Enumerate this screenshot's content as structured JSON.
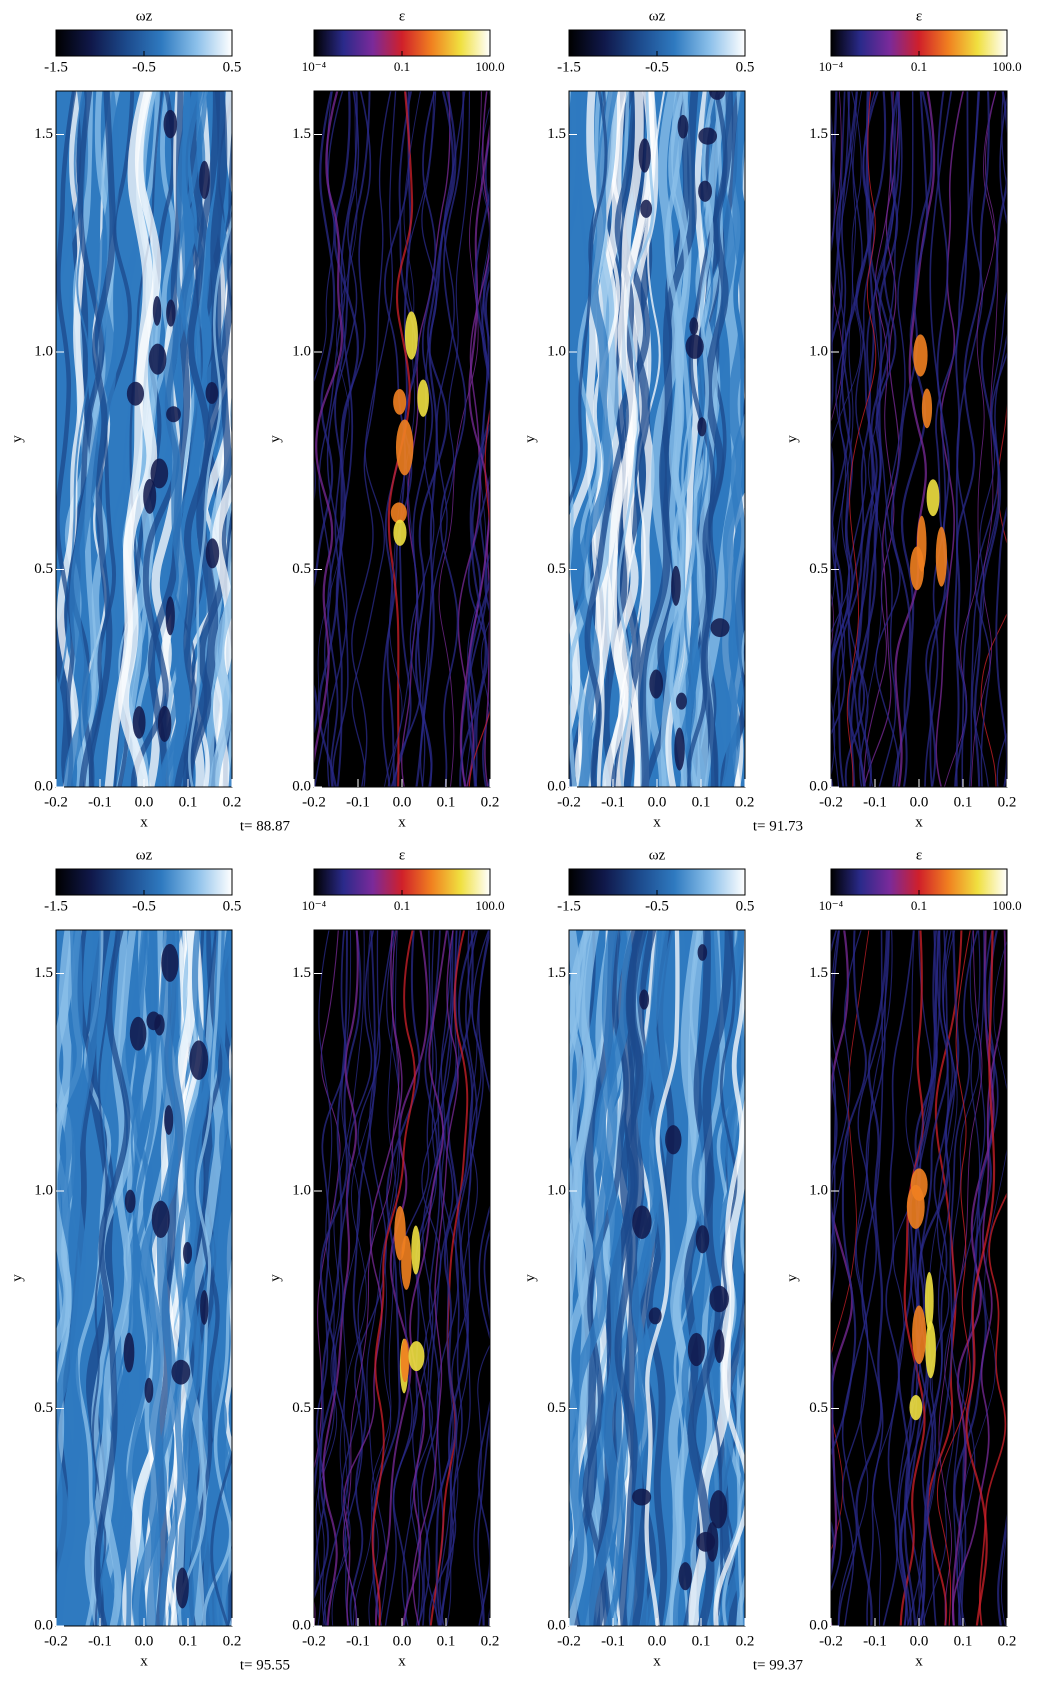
{
  "chart_data": [
    {
      "type": "heatmap",
      "title": "ωz",
      "xlabel": "x",
      "ylabel": "y",
      "xlim": [
        -0.2,
        0.2
      ],
      "ylim": [
        0,
        1.6
      ],
      "xticks": [
        -0.2,
        -0.1,
        {
          "value": 0,
          "label": "0.0"
        },
        0.1,
        0.2
      ],
      "yticks": [
        {
          "value": 0,
          "label": "0.0"
        },
        0.5,
        {
          "value": 1,
          "label": "1.0"
        },
        1.5
      ],
      "colorbar_lim": [
        -1.5,
        0.5
      ],
      "colorbar_ticks": [
        -1.5,
        -0.5,
        0.5
      ],
      "colorbar_log": false,
      "colormap": [
        "#000000",
        "#10184a",
        "#1c4a8c",
        "#2f7ac0",
        "#8cc0ea",
        "#ffffff"
      ],
      "annotation": "t= 88.87"
    },
    {
      "type": "heatmap",
      "title": "ε",
      "xlabel": "x",
      "ylabel": "y",
      "xlim": [
        -0.2,
        0.2
      ],
      "ylim": [
        0,
        1.6
      ],
      "xticks": [
        -0.2,
        -0.1,
        {
          "value": 0,
          "label": "0.0"
        },
        0.1,
        0.2
      ],
      "yticks": [
        {
          "value": 0,
          "label": "0.0"
        },
        0.5,
        {
          "value": 1,
          "label": "1.0"
        },
        1.5
      ],
      "colorbar_lim": [
        0.0001,
        100
      ],
      "colorbar_ticks": [
        {
          "value": 0.0001,
          "label": "10⁻⁴"
        },
        0.1,
        {
          "value": 100,
          "label": "100.0"
        }
      ],
      "colorbar_log": true,
      "colormap": [
        "#000000",
        "#2a2a8a",
        "#7a2a9a",
        "#d0202a",
        "#f08020",
        "#f0e040",
        "#ffffff"
      ]
    },
    {
      "type": "heatmap",
      "title": "ωz",
      "xlabel": "x",
      "ylabel": "y",
      "xlim": [
        -0.2,
        0.2
      ],
      "ylim": [
        0,
        1.6
      ],
      "xticks": [
        -0.2,
        -0.1,
        {
          "value": 0,
          "label": "0.0"
        },
        0.1,
        0.2
      ],
      "yticks": [
        {
          "value": 0,
          "label": "0.0"
        },
        0.5,
        {
          "value": 1,
          "label": "1.0"
        },
        1.5
      ],
      "colorbar_lim": [
        -1.5,
        0.5
      ],
      "colorbar_ticks": [
        -1.5,
        -0.5,
        0.5
      ],
      "colorbar_log": false,
      "colormap": [
        "#000000",
        "#10184a",
        "#1c4a8c",
        "#2f7ac0",
        "#8cc0ea",
        "#ffffff"
      ],
      "annotation": "t= 91.73"
    },
    {
      "type": "heatmap",
      "title": "ε",
      "xlabel": "x",
      "ylabel": "y",
      "xlim": [
        -0.2,
        0.2
      ],
      "ylim": [
        0,
        1.6
      ],
      "xticks": [
        -0.2,
        -0.1,
        {
          "value": 0,
          "label": "0.0"
        },
        0.1,
        0.2
      ],
      "yticks": [
        {
          "value": 0,
          "label": "0.0"
        },
        0.5,
        {
          "value": 1,
          "label": "1.0"
        },
        1.5
      ],
      "colorbar_lim": [
        0.0001,
        100
      ],
      "colorbar_ticks": [
        {
          "value": 0.0001,
          "label": "10⁻⁴"
        },
        0.1,
        {
          "value": 100,
          "label": "100.0"
        }
      ],
      "colorbar_log": true,
      "colormap": [
        "#000000",
        "#2a2a8a",
        "#7a2a9a",
        "#d0202a",
        "#f08020",
        "#f0e040",
        "#ffffff"
      ]
    },
    {
      "type": "heatmap",
      "title": "ωz",
      "xlabel": "x",
      "ylabel": "y",
      "xlim": [
        -0.2,
        0.2
      ],
      "ylim": [
        0,
        1.6
      ],
      "xticks": [
        -0.2,
        -0.1,
        {
          "value": 0,
          "label": "0.0"
        },
        0.1,
        0.2
      ],
      "yticks": [
        {
          "value": 0,
          "label": "0.0"
        },
        0.5,
        {
          "value": 1,
          "label": "1.0"
        },
        1.5
      ],
      "colorbar_lim": [
        -1.5,
        0.5
      ],
      "colorbar_ticks": [
        -1.5,
        -0.5,
        0.5
      ],
      "colorbar_log": false,
      "colormap": [
        "#000000",
        "#10184a",
        "#1c4a8c",
        "#2f7ac0",
        "#8cc0ea",
        "#ffffff"
      ],
      "annotation": "t= 95.55"
    },
    {
      "type": "heatmap",
      "title": "ε",
      "xlabel": "x",
      "ylabel": "y",
      "xlim": [
        -0.2,
        0.2
      ],
      "ylim": [
        0,
        1.6
      ],
      "xticks": [
        -0.2,
        -0.1,
        {
          "value": 0,
          "label": "0.0"
        },
        0.1,
        0.2
      ],
      "yticks": [
        {
          "value": 0,
          "label": "0.0"
        },
        0.5,
        {
          "value": 1,
          "label": "1.0"
        },
        1.5
      ],
      "colorbar_lim": [
        0.0001,
        100
      ],
      "colorbar_ticks": [
        {
          "value": 0.0001,
          "label": "10⁻⁴"
        },
        0.1,
        {
          "value": 100,
          "label": "100.0"
        }
      ],
      "colorbar_log": true,
      "colormap": [
        "#000000",
        "#2a2a8a",
        "#7a2a9a",
        "#d0202a",
        "#f08020",
        "#f0e040",
        "#ffffff"
      ]
    },
    {
      "type": "heatmap",
      "title": "ωz",
      "xlabel": "x",
      "ylabel": "y",
      "xlim": [
        -0.2,
        0.2
      ],
      "ylim": [
        0,
        1.6
      ],
      "xticks": [
        -0.2,
        -0.1,
        {
          "value": 0,
          "label": "0.0"
        },
        0.1,
        0.2
      ],
      "yticks": [
        {
          "value": 0,
          "label": "0.0"
        },
        0.5,
        {
          "value": 1,
          "label": "1.0"
        },
        1.5
      ],
      "colorbar_lim": [
        -1.5,
        0.5
      ],
      "colorbar_ticks": [
        -1.5,
        -0.5,
        0.5
      ],
      "colorbar_log": false,
      "colormap": [
        "#000000",
        "#10184a",
        "#1c4a8c",
        "#2f7ac0",
        "#8cc0ea",
        "#ffffff"
      ],
      "annotation": "t= 99.37"
    },
    {
      "type": "heatmap",
      "title": "ε",
      "xlabel": "x",
      "ylabel": "y",
      "xlim": [
        -0.2,
        0.2
      ],
      "ylim": [
        0,
        1.6
      ],
      "xticks": [
        -0.2,
        -0.1,
        {
          "value": 0,
          "label": "0.0"
        },
        0.1,
        0.2
      ],
      "yticks": [
        {
          "value": 0,
          "label": "0.0"
        },
        0.5,
        {
          "value": 1,
          "label": "1.0"
        },
        1.5
      ],
      "colorbar_lim": [
        0.0001,
        100
      ],
      "colorbar_ticks": [
        {
          "value": 0.0001,
          "label": "10⁻⁴"
        },
        0.1,
        {
          "value": 100,
          "label": "100.0"
        }
      ],
      "colorbar_log": true,
      "colormap": [
        "#000000",
        "#2a2a8a",
        "#7a2a9a",
        "#d0202a",
        "#f08020",
        "#f0e040",
        "#ffffff"
      ]
    }
  ]
}
